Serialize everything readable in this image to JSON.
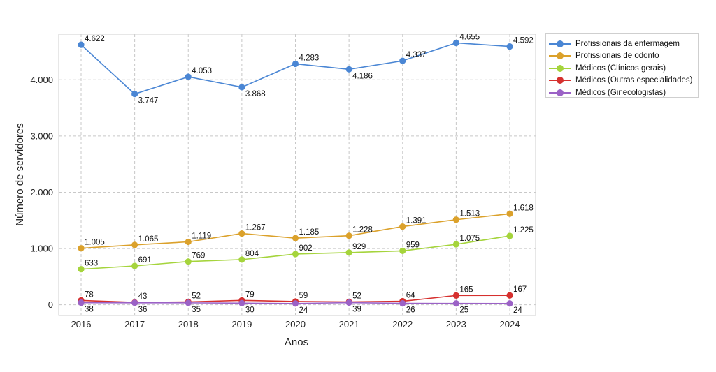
{
  "chart_data": {
    "type": "line",
    "title": "",
    "xlabel": "Anos",
    "ylabel": "Número de servidores",
    "x": [
      "2016",
      "2017",
      "2018",
      "2019",
      "2020",
      "2021",
      "2022",
      "2023",
      "2024"
    ],
    "ylim": [
      -190,
      4810
    ],
    "yticks": [
      0,
      1000,
      2000,
      3000,
      4000
    ],
    "ytick_labels": [
      "0",
      "1.000",
      "2.000",
      "3.000",
      "4.000"
    ],
    "grid": true,
    "legend_position": "outside-top-right",
    "series": [
      {
        "name": "Profissionais da enfermagem",
        "color": "#4a86d4",
        "values": [
          4622,
          3747,
          4053,
          3868,
          4283,
          4186,
          4337,
          4655,
          4592
        ],
        "labels": [
          "4.622",
          "3.747",
          "4.053",
          "3.868",
          "4.283",
          "4.186",
          "4.337",
          "4.655",
          "4.592"
        ]
      },
      {
        "name": "Profissionais de odonto",
        "color": "#dba12b",
        "values": [
          1005,
          1065,
          1119,
          1267,
          1185,
          1228,
          1391,
          1513,
          1618
        ],
        "labels": [
          "1.005",
          "1.065",
          "1.119",
          "1.267",
          "1.185",
          "1.228",
          "1.391",
          "1.513",
          "1.618"
        ]
      },
      {
        "name": "Médicos (Clínicos gerais)",
        "color": "#a5d43c",
        "values": [
          633,
          691,
          769,
          804,
          902,
          929,
          959,
          1075,
          1225
        ],
        "labels": [
          "633",
          "691",
          "769",
          "804",
          "902",
          "929",
          "959",
          "1.075",
          "1.225"
        ]
      },
      {
        "name": "Médicos (Outras especialidades)",
        "color": "#d6302e",
        "values": [
          78,
          43,
          52,
          79,
          59,
          52,
          64,
          165,
          167
        ],
        "labels": [
          "78",
          "43",
          "52",
          "79",
          "59",
          "52",
          "64",
          "165",
          "167"
        ]
      },
      {
        "name": "Médicos (Ginecologistas)",
        "color": "#9b62c6",
        "values": [
          38,
          36,
          35,
          30,
          24,
          39,
          26,
          25,
          24
        ],
        "labels": [
          "38",
          "36",
          "35",
          "30",
          "24",
          "39",
          "26",
          "25",
          "24"
        ]
      }
    ]
  }
}
